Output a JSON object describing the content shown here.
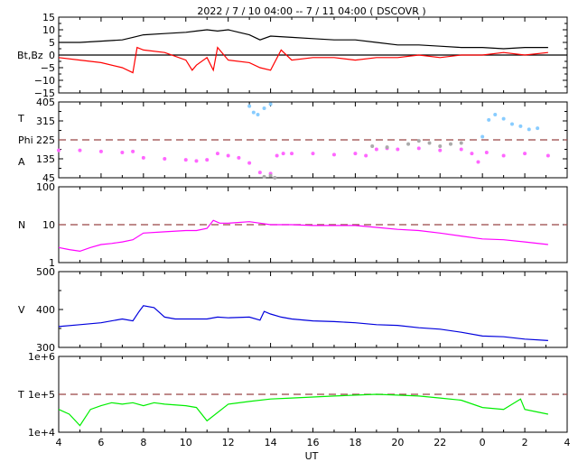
{
  "title": "2022 /  7 / 10   04:00 --  7 / 11   04:00 ( DSCOVR )",
  "xlabel": "UT",
  "x_ticks": [
    "4",
    "6",
    "8",
    "10",
    "12",
    "14",
    "16",
    "18",
    "20",
    "22",
    "0",
    "2",
    "4"
  ],
  "chart_data": [
    {
      "type": "line",
      "ylabel_lines": [
        "Bt,Bz"
      ],
      "ylim": [
        -15,
        15
      ],
      "y_ticks": [
        "15",
        "10",
        "5",
        "0",
        "−5",
        "−10",
        "−15"
      ],
      "zero_line": true,
      "series": [
        {
          "name": "Bt",
          "color": "#000000",
          "x": [
            4.0,
            5.0,
            6.0,
            7.0,
            7.5,
            8.0,
            9.0,
            10.0,
            10.5,
            11.0,
            11.5,
            12.0,
            12.5,
            13.0,
            13.5,
            14.0,
            15.0,
            16.0,
            17.0,
            18.0,
            19.0,
            20.0,
            21.0,
            22.0,
            23.0,
            24.0,
            25.0,
            26.0,
            27.1
          ],
          "y": [
            5,
            5,
            5.5,
            6,
            7,
            8,
            8.5,
            9,
            9.5,
            10,
            9.5,
            10,
            9,
            8,
            6,
            7.5,
            7,
            6.5,
            6,
            6,
            5,
            4,
            4,
            3.5,
            3,
            3,
            2.5,
            3,
            3
          ]
        },
        {
          "name": "Bz",
          "color": "#ff0000",
          "x": [
            4.0,
            5.0,
            6.0,
            7.0,
            7.5,
            7.7,
            8.0,
            9.0,
            10.0,
            10.3,
            10.5,
            11.0,
            11.3,
            11.5,
            12.0,
            13.0,
            13.5,
            14.0,
            14.5,
            15.0,
            16.0,
            17.0,
            18.0,
            19.0,
            20.0,
            21.0,
            22.0,
            23.0,
            24.0,
            25.0,
            26.0,
            27.1
          ],
          "y": [
            -1,
            -2,
            -3,
            -5,
            -7,
            3,
            2,
            1,
            -2,
            -6,
            -4,
            -1,
            -6,
            3,
            -2,
            -3,
            -5,
            -6,
            2,
            -2,
            -1,
            -1,
            -2,
            -1,
            -1,
            0,
            -1,
            0,
            0,
            1,
            0,
            1
          ]
        }
      ]
    },
    {
      "type": "scatter",
      "ylabel_lines": [
        "T",
        "Phi",
        "A"
      ],
      "ylim": [
        45,
        405
      ],
      "y_ticks": [
        "405",
        "315",
        "225",
        "135",
        "45"
      ],
      "ref_value": 225,
      "series": [
        {
          "name": "A",
          "color": "#ff66ff",
          "x": [
            4.0,
            5.0,
            6.0,
            7.0,
            7.5,
            8.0,
            9.0,
            10.0,
            10.5,
            11.0,
            11.5,
            12.0,
            12.5,
            13.0,
            13.5,
            14.0,
            14.3,
            14.6,
            15.0,
            16.0,
            17.0,
            18.0,
            18.5,
            19.0,
            19.5,
            20.0,
            21.0,
            22.0,
            23.0,
            23.5,
            23.8,
            24.2,
            25.0,
            26.0,
            27.1
          ],
          "y": [
            175,
            175,
            170,
            165,
            170,
            140,
            135,
            130,
            125,
            130,
            160,
            150,
            140,
            115,
            70,
            65,
            150,
            160,
            160,
            160,
            155,
            160,
            150,
            180,
            185,
            180,
            185,
            175,
            180,
            160,
            120,
            165,
            150,
            160,
            150
          ]
        },
        {
          "name": "T",
          "color": "#88ccff",
          "x": [
            13.0,
            13.2,
            13.4,
            13.7,
            14.0,
            24.0,
            24.3,
            24.6,
            25.0,
            25.4,
            25.8,
            26.2,
            26.6
          ],
          "y": [
            385,
            355,
            345,
            375,
            395,
            240,
            320,
            345,
            325,
            300,
            290,
            275,
            280
          ]
        },
        {
          "name": "Phi",
          "color": "#aaaaaa",
          "x": [
            13.7,
            14.0,
            14.2,
            18.8,
            19.5,
            20.5,
            21.0,
            21.5,
            22.0,
            22.5,
            23.0
          ],
          "y": [
            50,
            55,
            45,
            195,
            190,
            205,
            220,
            210,
            195,
            205,
            210
          ]
        }
      ]
    },
    {
      "type": "line",
      "ylabel_lines": [
        "N"
      ],
      "yscale": "log",
      "ylim": [
        1,
        100
      ],
      "y_ticks": [
        "100",
        "10",
        "1"
      ],
      "ref_value": 10,
      "series": [
        {
          "name": "N",
          "color": "#ff00ff",
          "x": [
            4.0,
            4.5,
            5.0,
            5.5,
            6.0,
            6.5,
            7.0,
            7.5,
            8.0,
            9.0,
            10.0,
            10.5,
            11.0,
            11.3,
            11.6,
            12.0,
            13.0,
            13.5,
            14.0,
            15.0,
            16.0,
            17.0,
            18.0,
            19.0,
            20.0,
            21.0,
            22.0,
            23.0,
            24.0,
            25.0,
            26.0,
            27.1
          ],
          "y": [
            2.5,
            2.2,
            2.0,
            2.5,
            3.0,
            3.2,
            3.5,
            4.0,
            6,
            6.5,
            7,
            7,
            8,
            13,
            11,
            11,
            12,
            11,
            10,
            10,
            9.5,
            9.5,
            9.5,
            8.5,
            7.5,
            7,
            6,
            5,
            4.2,
            4,
            3.5,
            3
          ]
        }
      ]
    },
    {
      "type": "line",
      "ylabel_lines": [
        "V"
      ],
      "ylim": [
        300,
        500
      ],
      "y_ticks": [
        "500",
        "400",
        "300"
      ],
      "series": [
        {
          "name": "V",
          "color": "#0000dd",
          "x": [
            4.0,
            5.0,
            6.0,
            7.0,
            7.5,
            7.8,
            8.0,
            8.5,
            9.0,
            9.5,
            10.0,
            11.0,
            11.5,
            12.0,
            13.0,
            13.5,
            13.7,
            14.0,
            14.5,
            15.0,
            16.0,
            17.0,
            18.0,
            19.0,
            20.0,
            21.0,
            22.0,
            23.0,
            24.0,
            25.0,
            26.0,
            27.1
          ],
          "y": [
            355,
            360,
            365,
            375,
            370,
            395,
            410,
            405,
            380,
            375,
            375,
            375,
            380,
            378,
            380,
            372,
            395,
            388,
            380,
            375,
            370,
            368,
            365,
            360,
            358,
            352,
            348,
            340,
            330,
            328,
            322,
            318
          ]
        }
      ]
    },
    {
      "type": "line",
      "ylabel_lines": [
        "T"
      ],
      "yscale": "log",
      "ylim": [
        10000,
        1000000
      ],
      "y_ticks": [
        "1e+6",
        "1e+5",
        "1e+4"
      ],
      "ref_value": 100000,
      "series": [
        {
          "name": "T",
          "color": "#00ee00",
          "x": [
            4.0,
            4.5,
            5.0,
            5.5,
            6.0,
            6.5,
            7.0,
            7.5,
            8.0,
            8.5,
            9.0,
            10.0,
            10.5,
            11.0,
            12.0,
            13.0,
            14.0,
            15.0,
            16.0,
            17.0,
            18.0,
            19.0,
            20.0,
            21.0,
            22.0,
            23.0,
            24.0,
            25.0,
            25.8,
            26.0,
            26.5,
            27.1
          ],
          "y": [
            40000,
            30000,
            15000,
            40000,
            50000,
            60000,
            55000,
            60000,
            50000,
            60000,
            55000,
            50000,
            45000,
            20000,
            55000,
            65000,
            75000,
            80000,
            85000,
            90000,
            95000,
            100000,
            95000,
            90000,
            80000,
            70000,
            45000,
            40000,
            75000,
            40000,
            35000,
            30000
          ]
        }
      ]
    }
  ]
}
